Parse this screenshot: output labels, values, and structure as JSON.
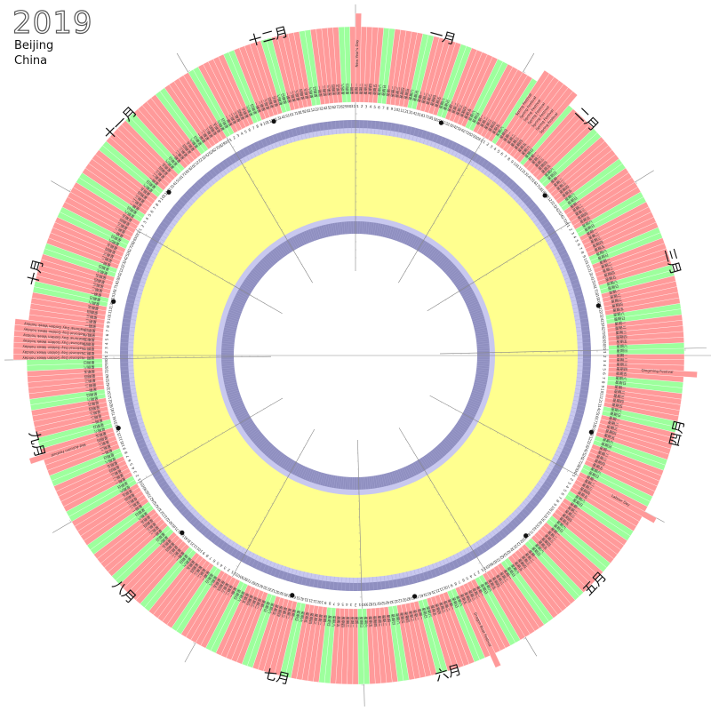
{
  "header": {
    "year": "2019",
    "city": "Beijing",
    "country": "China"
  },
  "months": [
    "一月",
    "二月",
    "三月",
    "四月",
    "五月",
    "六月",
    "七月",
    "八月",
    "九月",
    "十月",
    "十一月",
    "十二月"
  ],
  "days_in_months": [
    31,
    28,
    31,
    30,
    31,
    30,
    31,
    31,
    30,
    31,
    30,
    31
  ],
  "first_weekday": 1,
  "weekday_names": [
    "星期日",
    "星期一",
    "星期二",
    "星期三",
    "星期四",
    "星期五",
    "星期六"
  ],
  "holidays": [
    {
      "label": "New Year's Day",
      "month": 1,
      "day": 1
    },
    {
      "label": "Spring Festival",
      "month": 2,
      "day": 4
    },
    {
      "label": "Spring Festival",
      "month": 2,
      "day": 5
    },
    {
      "label": "Spring Festival",
      "month": 2,
      "day": 6
    },
    {
      "label": "Spring Festival",
      "month": 2,
      "day": 7
    },
    {
      "label": "Spring Festival",
      "month": 2,
      "day": 8
    },
    {
      "label": "Spring Festival",
      "month": 2,
      "day": 9
    },
    {
      "label": "Spring Festival",
      "month": 2,
      "day": 10
    },
    {
      "label": "Qingming Festival",
      "month": 4,
      "day": 5
    },
    {
      "label": "Labour Day",
      "month": 5,
      "day": 1
    },
    {
      "label": "Dragon Boat Festival",
      "month": 6,
      "day": 7
    },
    {
      "label": "Mid-Autumn Festival",
      "month": 9,
      "day": 13
    },
    {
      "label": "National Day Golden Week holiday",
      "month": 10,
      "day": 1
    },
    {
      "label": "National Day Golden Week holiday",
      "month": 10,
      "day": 2
    },
    {
      "label": "National Day Golden Week holiday",
      "month": 10,
      "day": 3
    },
    {
      "label": "National Day Golden Week holiday",
      "month": 10,
      "day": 4
    },
    {
      "label": "National Day Golden Week holiday",
      "month": 10,
      "day": 5
    },
    {
      "label": "National Day Golden Week holiday",
      "month": 10,
      "day": 6
    },
    {
      "label": "National Day Golden Week holiday",
      "month": 10,
      "day": 7
    }
  ],
  "colors": {
    "weekday_bar": "#ff9a9a",
    "weekend_bar": "#9dff9d",
    "holiday_bar": "#ff9a9a",
    "daylight_ring": "#ffff8f",
    "twilight_dark": "#8f8fc0",
    "twilight_light": "#c8c8ef",
    "axis_line": "#888888"
  }
}
